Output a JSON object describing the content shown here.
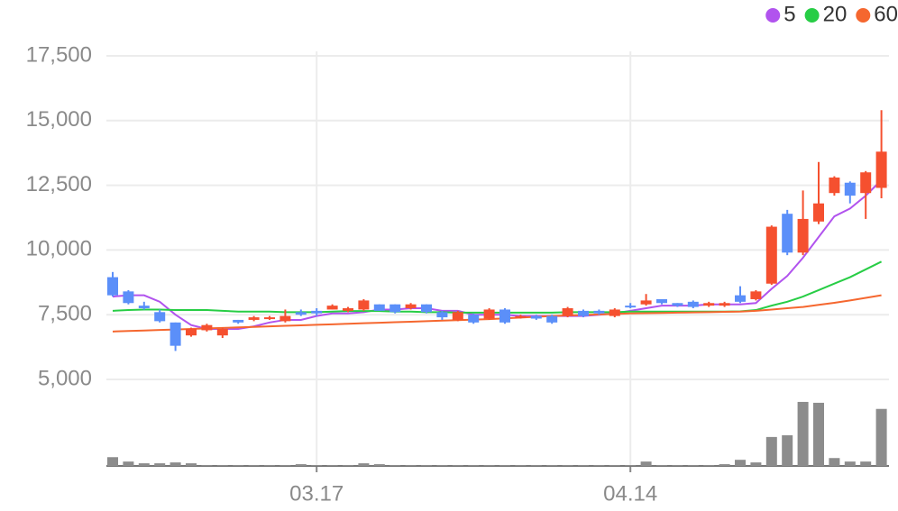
{
  "chart_data": {
    "type": "candlestick",
    "categories": [
      null,
      null,
      null,
      null,
      null,
      null,
      null,
      null,
      null,
      null,
      null,
      null,
      null,
      "03.17",
      null,
      null,
      null,
      null,
      null,
      null,
      null,
      null,
      null,
      null,
      null,
      null,
      null,
      null,
      null,
      null,
      null,
      null,
      null,
      "04.14",
      null,
      null,
      null,
      null,
      null,
      null,
      null,
      null,
      null,
      null,
      null,
      null,
      null,
      null,
      null,
      null
    ],
    "open": [
      8950,
      8400,
      7850,
      7600,
      7200,
      6700,
      6900,
      6700,
      7300,
      7300,
      7350,
      7250,
      7600,
      7650,
      7700,
      7650,
      7700,
      7900,
      7900,
      7750,
      7900,
      7600,
      7300,
      7500,
      7350,
      7700,
      7400,
      7450,
      7450,
      7450,
      7650,
      7650,
      7450,
      7850,
      7900,
      8100,
      7950,
      8000,
      7850,
      7850,
      8250,
      8100,
      8700,
      11400,
      9900,
      11100,
      12200,
      12600,
      12200,
      12400
    ],
    "high": [
      9150,
      8450,
      8000,
      7700,
      7200,
      7000,
      7150,
      7000,
      7300,
      7450,
      7450,
      7700,
      7700,
      7750,
      7900,
      7800,
      8100,
      7900,
      7900,
      7950,
      7900,
      7650,
      7650,
      7550,
      7750,
      7750,
      7500,
      7500,
      7500,
      7800,
      7700,
      7700,
      7750,
      7950,
      8300,
      8100,
      7950,
      8050,
      8000,
      8000,
      8600,
      8450,
      10950,
      11550,
      12300,
      13400,
      12850,
      12650,
      13050,
      15400
    ],
    "low": [
      8200,
      7900,
      7700,
      7200,
      6100,
      6650,
      6850,
      6600,
      7150,
      7250,
      7300,
      7200,
      7450,
      7450,
      7700,
      7600,
      7650,
      7650,
      7550,
      7700,
      7550,
      7300,
      7250,
      7150,
      7300,
      7150,
      7350,
      7300,
      7150,
      7400,
      7400,
      7500,
      7400,
      7750,
      7850,
      7900,
      7800,
      7750,
      7800,
      7800,
      7950,
      8050,
      8650,
      9800,
      9800,
      11000,
      12100,
      11800,
      11200,
      12000
    ],
    "close": [
      8250,
      7950,
      7750,
      7250,
      6300,
      6950,
      7100,
      6950,
      7200,
      7400,
      7400,
      7450,
      7500,
      7550,
      7850,
      7750,
      8050,
      7650,
      7600,
      7900,
      7600,
      7400,
      7600,
      7200,
      7700,
      7200,
      7450,
      7350,
      7200,
      7750,
      7450,
      7550,
      7700,
      7800,
      8050,
      7950,
      7850,
      7800,
      7950,
      7950,
      8000,
      8400,
      10900,
      9900,
      11200,
      11800,
      12800,
      12100,
      13000,
      13800
    ],
    "up_color": "#f5502f",
    "down_color": "#5b8ff9",
    "volume": [
      10,
      5,
      3,
      3,
      4,
      3,
      1,
      1,
      1,
      1,
      1,
      1,
      2,
      1,
      1,
      1,
      3,
      2,
      1,
      1,
      1,
      1,
      1,
      1,
      1,
      1,
      1,
      1,
      1,
      1,
      1,
      1,
      1,
      1,
      5,
      1,
      1,
      1,
      1,
      2,
      7,
      4,
      33,
      35,
      73,
      72,
      9,
      5,
      5,
      65
    ],
    "volume_color": "#8c8c8c",
    "y2lim": [
      0,
      75
    ],
    "series": [
      {
        "name": "5",
        "color": "#b153ee",
        "values": [
          8200,
          8250,
          8250,
          8000,
          7500,
          7100,
          6950,
          6950,
          6950,
          7050,
          7200,
          7300,
          7300,
          7450,
          7550,
          7550,
          7600,
          7700,
          7700,
          7750,
          7750,
          7650,
          7650,
          7500,
          7500,
          7500,
          7450,
          7450,
          7450,
          7450,
          7450,
          7500,
          7550,
          7650,
          7750,
          7850,
          7850,
          7850,
          7900,
          7900,
          7900,
          7950,
          8500,
          9000,
          9700,
          10500,
          11300,
          11600,
          12100,
          12700
        ]
      },
      {
        "name": "20",
        "color": "#27cd45",
        "values": [
          7650,
          7680,
          7700,
          7700,
          7680,
          7680,
          7680,
          7650,
          7620,
          7620,
          7620,
          7600,
          7600,
          7600,
          7620,
          7640,
          7640,
          7640,
          7620,
          7620,
          7600,
          7600,
          7580,
          7580,
          7580,
          7580,
          7580,
          7580,
          7580,
          7600,
          7600,
          7600,
          7600,
          7620,
          7620,
          7620,
          7620,
          7620,
          7620,
          7620,
          7630,
          7680,
          7850,
          8000,
          8200,
          8450,
          8700,
          8950,
          9250,
          9550
        ]
      },
      {
        "name": "60",
        "color": "#f5672f",
        "values": [
          6850,
          6870,
          6890,
          6910,
          6930,
          6950,
          6970,
          6990,
          7010,
          7030,
          7050,
          7070,
          7090,
          7110,
          7130,
          7150,
          7170,
          7190,
          7210,
          7230,
          7250,
          7270,
          7290,
          7310,
          7330,
          7360,
          7390,
          7420,
          7450,
          7470,
          7490,
          7510,
          7530,
          7550,
          7560,
          7570,
          7580,
          7590,
          7600,
          7610,
          7620,
          7650,
          7700,
          7750,
          7800,
          7880,
          7960,
          8050,
          8150,
          8250
        ]
      }
    ],
    "ylim": [
      5000,
      17500
    ],
    "yticks": [
      {
        "value": 5000,
        "label": "5,000"
      },
      {
        "value": 7500,
        "label": "7,500"
      },
      {
        "value": 10000,
        "label": "10,000"
      },
      {
        "value": 12500,
        "label": "12,500"
      },
      {
        "value": 15000,
        "label": "15,000"
      },
      {
        "value": 17500,
        "label": "17,500"
      }
    ],
    "grid": true,
    "legend": "top-right"
  }
}
